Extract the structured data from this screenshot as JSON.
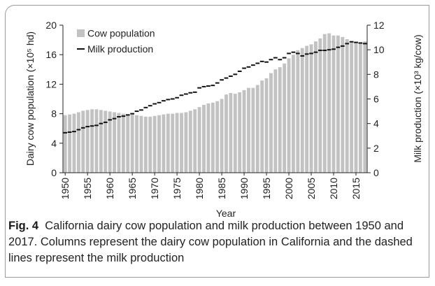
{
  "figure": {
    "label": "Fig. 4",
    "caption": "California dairy cow population and milk production between 1950 and 2017. Columns represent the dairy cow population in California and the dashed lines represent the milk production"
  },
  "chart_data": {
    "type": "bar+line",
    "x_label": "Year",
    "y_left_label": "Dairy cow population (×10⁵ hd)",
    "y_right_label": "Milk production (×10³ kg/cow)",
    "y_left_range": [
      0,
      20
    ],
    "y_left_ticks": [
      "0",
      "4",
      "8",
      "12",
      "16",
      "20"
    ],
    "y_right_range": [
      0,
      12
    ],
    "y_right_ticks": [
      "0",
      "2",
      "4",
      "6",
      "8",
      "10",
      "12"
    ],
    "x_ticks": [
      "1950",
      "1955",
      "1960",
      "1965",
      "1970",
      "1975",
      "1980",
      "1985",
      "1990",
      "1995",
      "2000",
      "2005",
      "2010",
      "2015"
    ],
    "grid": false,
    "legend": {
      "position": "top-left",
      "entries": [
        "Cow population",
        "Milk production"
      ]
    },
    "colors": {
      "bars": "#c2c2c2",
      "milk": "#111111"
    },
    "years": [
      1950,
      1951,
      1952,
      1953,
      1954,
      1955,
      1956,
      1957,
      1958,
      1959,
      1960,
      1961,
      1962,
      1963,
      1964,
      1965,
      1966,
      1967,
      1968,
      1969,
      1970,
      1971,
      1972,
      1973,
      1974,
      1975,
      1976,
      1977,
      1978,
      1979,
      1980,
      1981,
      1982,
      1983,
      1984,
      1985,
      1986,
      1987,
      1988,
      1989,
      1990,
      1991,
      1992,
      1993,
      1994,
      1995,
      1996,
      1997,
      1998,
      1999,
      2000,
      2001,
      2002,
      2003,
      2004,
      2005,
      2006,
      2007,
      2008,
      2009,
      2010,
      2011,
      2012,
      2013,
      2014,
      2015,
      2016,
      2017
    ],
    "series": [
      {
        "name": "Cow population",
        "axis": "left",
        "values": [
          7.8,
          7.9,
          8.0,
          8.2,
          8.4,
          8.5,
          8.6,
          8.6,
          8.5,
          8.4,
          8.3,
          8.2,
          8.1,
          8.0,
          7.9,
          7.9,
          7.8,
          7.7,
          7.6,
          7.6,
          7.7,
          7.8,
          7.9,
          8.0,
          8.0,
          8.1,
          8.1,
          8.2,
          8.4,
          8.6,
          8.9,
          9.2,
          9.4,
          9.5,
          9.7,
          10.0,
          10.6,
          10.8,
          10.7,
          10.9,
          11.2,
          11.5,
          11.5,
          11.9,
          12.5,
          12.8,
          13.5,
          14.0,
          14.3,
          14.8,
          15.5,
          16.0,
          16.6,
          16.9,
          17.2,
          17.4,
          17.8,
          18.2,
          18.8,
          18.9,
          18.6,
          18.6,
          18.4,
          18.1,
          17.8,
          17.7,
          17.6,
          17.8
        ]
      },
      {
        "name": "Milk production",
        "axis": "right",
        "values": [
          3.25,
          3.3,
          3.35,
          3.5,
          3.65,
          3.75,
          3.8,
          3.85,
          4.0,
          4.1,
          4.3,
          4.4,
          4.55,
          4.6,
          4.7,
          4.8,
          5.0,
          5.1,
          5.3,
          5.45,
          5.6,
          5.7,
          5.85,
          5.95,
          6.0,
          6.1,
          6.3,
          6.4,
          6.5,
          6.55,
          6.9,
          7.0,
          7.05,
          7.1,
          7.3,
          7.55,
          7.7,
          7.85,
          8.0,
          8.25,
          8.5,
          8.6,
          8.75,
          8.9,
          9.05,
          9.0,
          9.2,
          9.35,
          9.2,
          9.35,
          9.7,
          9.8,
          9.7,
          9.5,
          9.65,
          9.7,
          9.8,
          9.95,
          9.95,
          10.0,
          10.05,
          10.2,
          10.3,
          10.5,
          10.65,
          10.6,
          10.55,
          10.5
        ]
      }
    ]
  }
}
